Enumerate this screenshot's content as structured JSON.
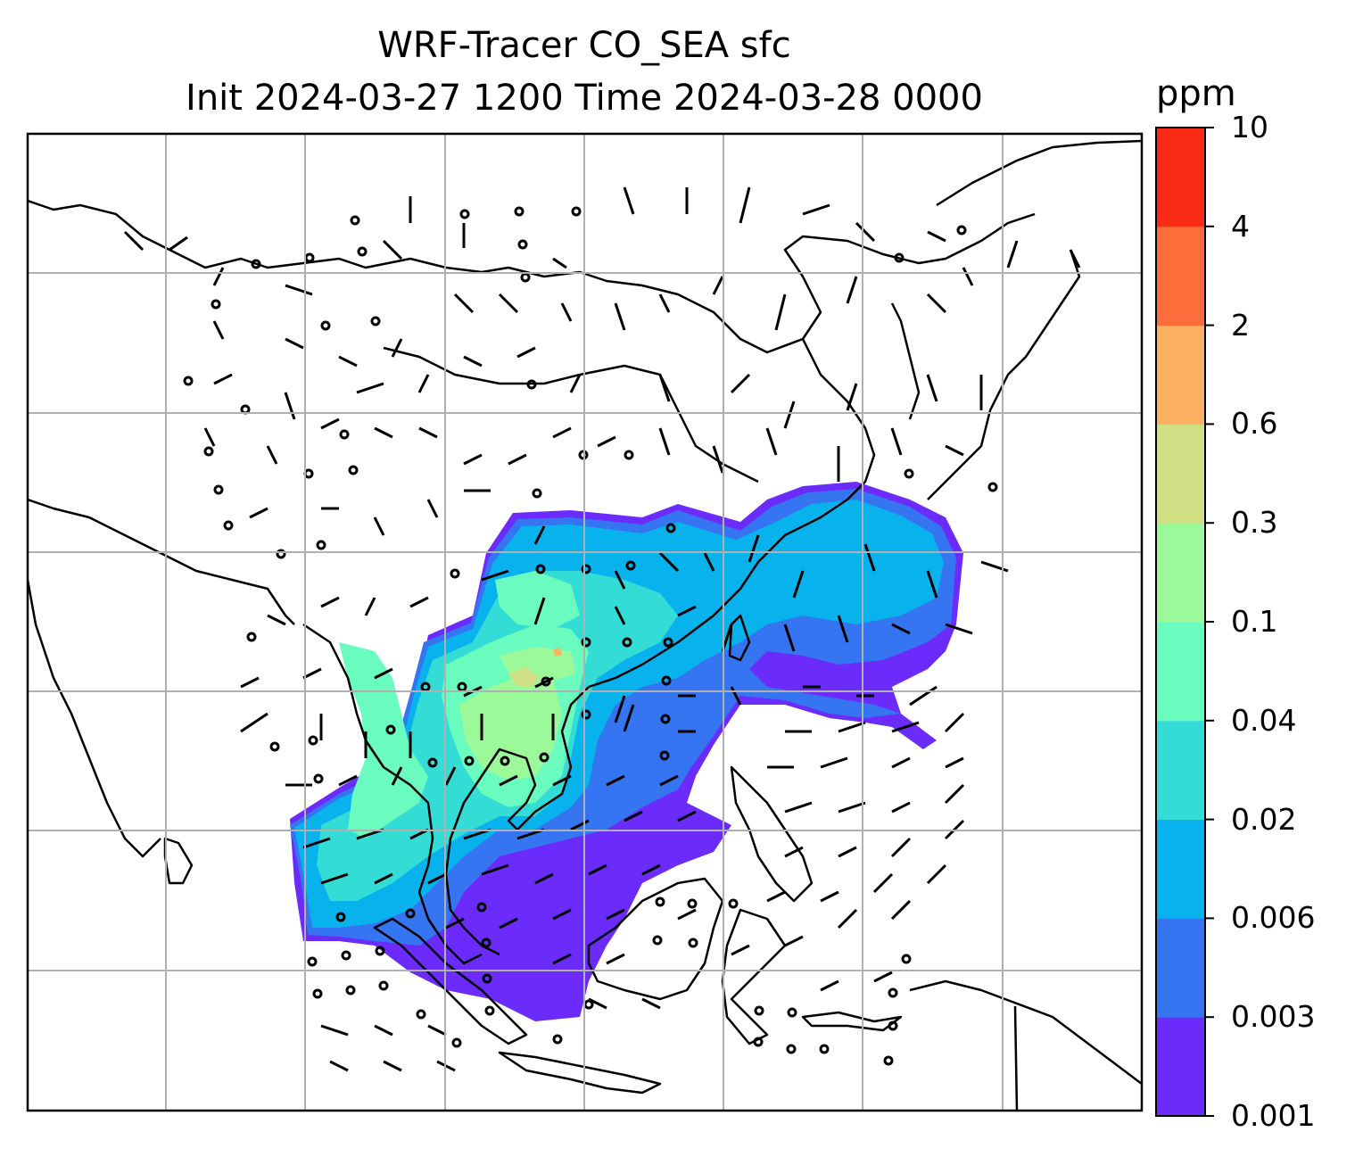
{
  "title": {
    "line1": "WRF-Tracer CO_SEA sfc",
    "line2": "Init 2024-03-27 1200 Time 2024-03-28 0000"
  },
  "colorbar": {
    "unit": "ppm",
    "levels": [
      "0.001",
      "0.003",
      "0.006",
      "0.02",
      "0.04",
      "0.1",
      "0.3",
      "0.6",
      "2",
      "4",
      "10"
    ],
    "colors": [
      "#6a2bfb",
      "#3575f2",
      "#08b2ec",
      "#33dcd4",
      "#6afbbe",
      "#9cf99a",
      "#d0df84",
      "#fbb062",
      "#fb6e3b",
      "#fb2a16"
    ]
  },
  "map": {
    "background": "#ffffff",
    "gridline_color": "#b0b0b0",
    "coastline_color": "#000000",
    "overlays": [
      "CO tracer concentration shading",
      "wind barbs",
      "coastlines",
      "country borders"
    ]
  }
}
